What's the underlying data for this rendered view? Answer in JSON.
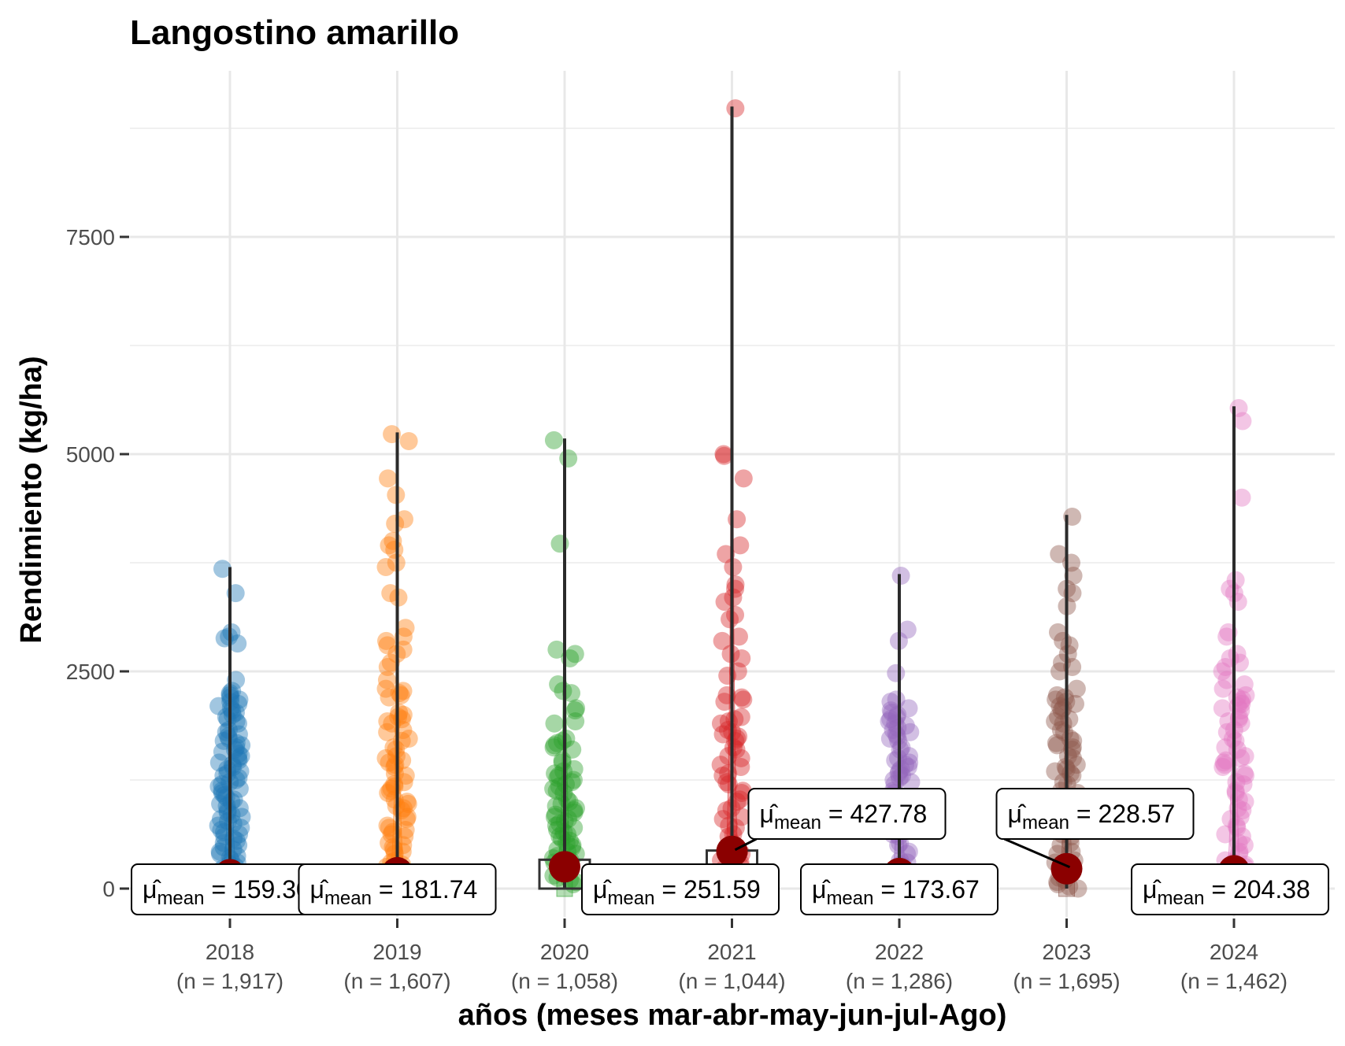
{
  "chart_data": {
    "type": "scatter",
    "title": "Langostino amarillo",
    "xlabel": "años (meses mar-abr-may-jun-jul-Ago)",
    "ylabel": "Rendimiento (kg/ha)",
    "ylim": [
      -350,
      9200
    ],
    "y_ticks": [
      0,
      2500,
      5000,
      7500
    ],
    "y_tick_labels": [
      "0",
      "2500",
      "5000",
      "7500"
    ],
    "grid": true,
    "legend": "none",
    "mean_symbol": "μ̂",
    "mean_subscript": "mean",
    "categories": [
      {
        "year": "2018",
        "n_label": "(n = 1,917)",
        "color": "#1f77b4",
        "mean": 159.3,
        "mean_label": "159.30",
        "max": 3700,
        "points": [
          3680,
          3400,
          2950,
          2900,
          2880,
          2820,
          2400,
          2250,
          2200,
          2150,
          2100,
          2050,
          2000,
          1950,
          1900,
          1800,
          1750,
          1700,
          1650,
          1600,
          1550,
          1500,
          1450,
          1400,
          1350,
          1300,
          1250,
          1200,
          1150,
          1100,
          1050,
          1000,
          950,
          900,
          850,
          800,
          750,
          700,
          650,
          600,
          550,
          500,
          450,
          400,
          350,
          300,
          250,
          200,
          150,
          100,
          50
        ]
      },
      {
        "year": "2019",
        "n_label": "(n = 1,607)",
        "color": "#ff7f0e",
        "mean": 181.74,
        "mean_label": "181.74",
        "max": 5250,
        "points": [
          5230,
          5150,
          4720,
          4530,
          4250,
          4200,
          4000,
          3950,
          3900,
          3750,
          3700,
          3400,
          3350,
          3000,
          2900,
          2850,
          2800,
          2750,
          2700,
          2600,
          2550,
          2400,
          2300,
          2250,
          2200,
          2000,
          1950,
          1900,
          1800,
          1700,
          1600,
          1500,
          1450,
          1400,
          1300,
          1200,
          1150,
          1100,
          1000,
          950,
          900,
          800,
          700,
          650,
          600,
          500,
          450,
          400,
          300,
          250,
          200,
          150,
          100,
          50
        ]
      },
      {
        "year": "2020",
        "n_label": "(n = 1,058)",
        "color": "#2ca02c",
        "mean": 251.59,
        "mean_label": "251.59",
        "max": 5180,
        "points": [
          5160,
          4950,
          3970,
          2750,
          2700,
          2650,
          2350,
          2250,
          2050,
          1900,
          1700,
          1650,
          1600,
          1450,
          1350,
          1300,
          1250,
          1200,
          1150,
          1100,
          1000,
          950,
          900,
          850,
          800,
          750,
          700,
          650,
          600,
          550,
          500,
          450,
          400,
          350,
          300,
          250,
          200,
          150,
          100,
          50
        ]
      },
      {
        "year": "2021",
        "n_label": "(n = 1,044)",
        "color": "#d62728",
        "mean": 427.78,
        "mean_label": "427.78",
        "max": 9000,
        "points": [
          8980,
          5000,
          4980,
          4720,
          4250,
          3950,
          3850,
          3700,
          3500,
          3450,
          3350,
          3300,
          3150,
          3100,
          2900,
          2850,
          2700,
          2650,
          2500,
          2450,
          2200,
          2150,
          1950,
          1900,
          1800,
          1750,
          1700,
          1600,
          1500,
          1400,
          1300,
          1200,
          1100,
          1000,
          900,
          800,
          700,
          600,
          500,
          400,
          300,
          250,
          200,
          150,
          100,
          50
        ]
      },
      {
        "year": "2022",
        "n_label": "(n = 1,286)",
        "color": "#9467bd",
        "mean": 173.67,
        "mean_label": "173.67",
        "max": 3620,
        "points": [
          3600,
          2980,
          2850,
          2480,
          2150,
          2050,
          2000,
          1950,
          1900,
          1850,
          1800,
          1750,
          1700,
          1600,
          1500,
          1450,
          1400,
          1350,
          1300,
          1250,
          1200,
          1100,
          1000,
          900,
          800,
          700,
          600,
          500,
          400,
          300,
          250,
          200,
          150,
          100,
          50
        ]
      },
      {
        "year": "2023",
        "n_label": "(n = 1,695)",
        "color": "#8c564b",
        "mean": 228.57,
        "mean_label": "228.57",
        "max": 4300,
        "points": [
          4280,
          3850,
          3750,
          3600,
          3450,
          3400,
          3250,
          2950,
          2850,
          2800,
          2700,
          2600,
          2550,
          2500,
          2300,
          2200,
          2150,
          2100,
          2050,
          1950,
          1900,
          1800,
          1700,
          1650,
          1600,
          1500,
          1400,
          1350,
          1300,
          1200,
          1100,
          1000,
          900,
          800,
          700,
          600,
          500,
          400,
          300,
          200,
          100,
          50,
          0
        ]
      },
      {
        "year": "2024",
        "n_label": "(n = 1,462)",
        "color": "#e377c2",
        "mean": 204.38,
        "mean_label": "204.38",
        "max": 5550,
        "points": [
          5530,
          5380,
          4500,
          3550,
          3450,
          3400,
          3300,
          2950,
          2900,
          2700,
          2650,
          2600,
          2550,
          2500,
          2400,
          2350,
          2300,
          2200,
          2150,
          2100,
          2050,
          1950,
          1900,
          1800,
          1700,
          1600,
          1500,
          1450,
          1400,
          1300,
          1200,
          1100,
          1000,
          900,
          800,
          700,
          600,
          500,
          400,
          300,
          250,
          200,
          150,
          100,
          50
        ]
      }
    ]
  }
}
